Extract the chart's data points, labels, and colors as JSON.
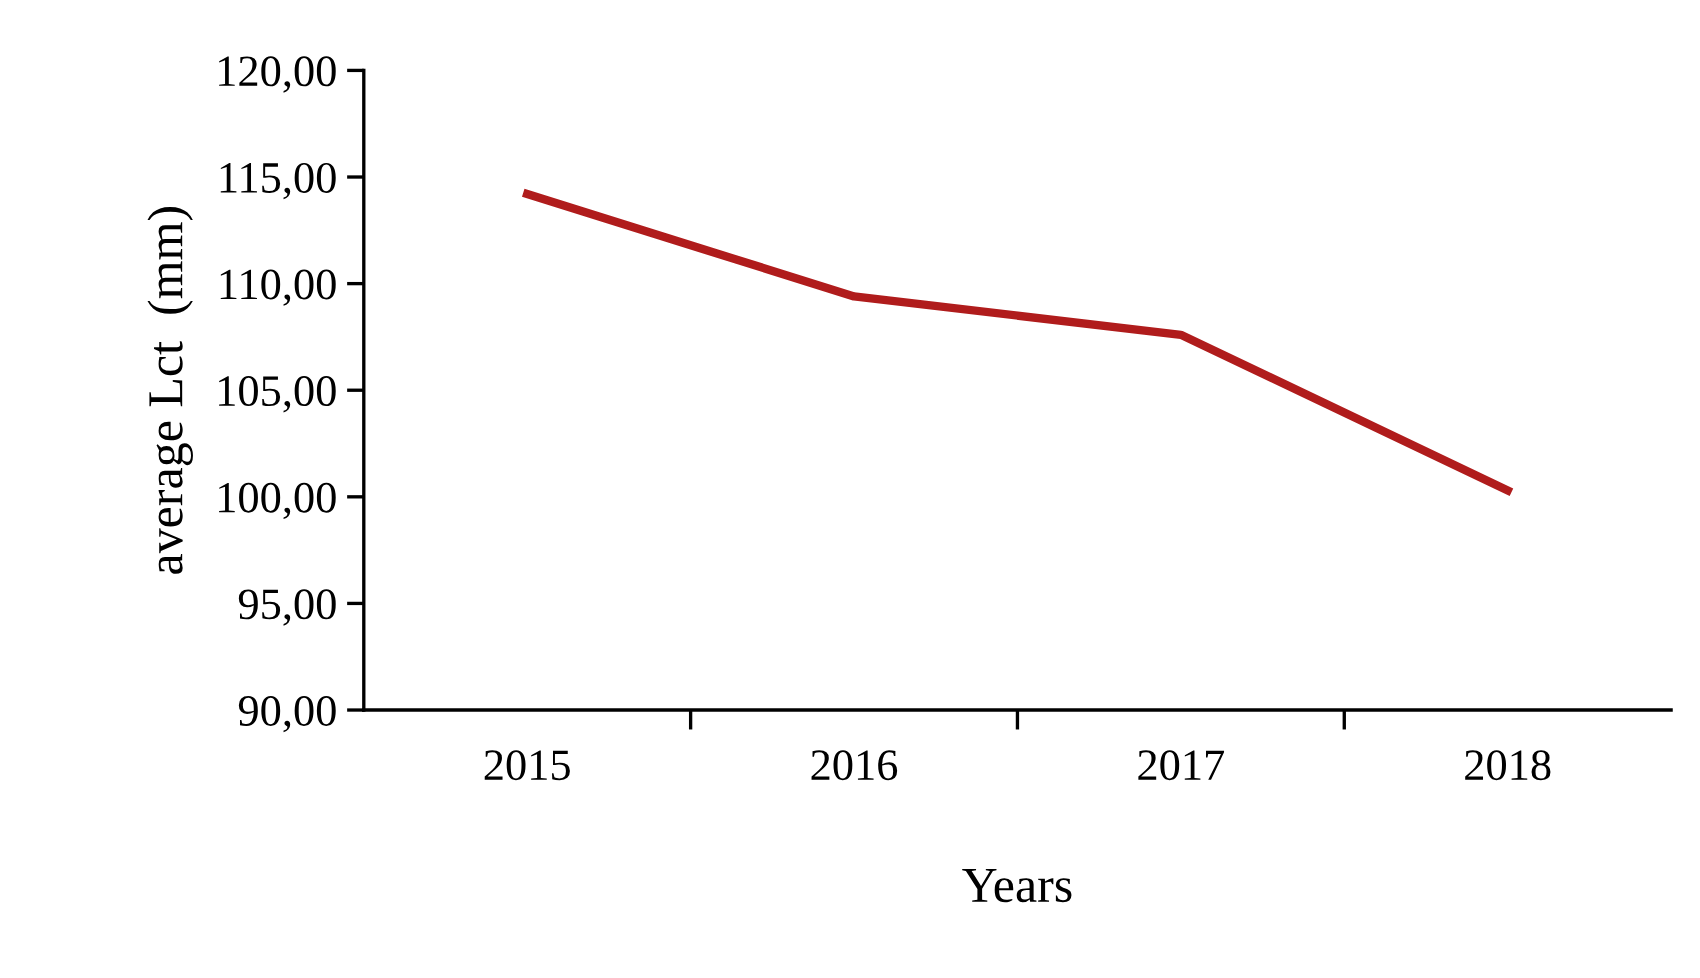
{
  "chart_data": {
    "type": "line",
    "xlabel": "Years",
    "ylabel": "average Lct  (mm)",
    "categories": [
      "2015",
      "2016",
      "2017",
      "2018"
    ],
    "series": [
      {
        "color": "#b01c1c",
        "values": [
          114.2,
          109.4,
          107.6,
          100.3
        ]
      }
    ],
    "ylim": [
      90,
      120
    ],
    "yticks": [
      {
        "value": 90,
        "label": "90,00"
      },
      {
        "value": 95,
        "label": "95,00"
      },
      {
        "value": 100,
        "label": "100,00"
      },
      {
        "value": 105,
        "label": "105,00"
      },
      {
        "value": 110,
        "label": "110,00"
      },
      {
        "value": 115,
        "label": "115,00"
      },
      {
        "value": 120,
        "label": "120,00"
      }
    ],
    "grid": false,
    "legend": false,
    "marker": "none",
    "line_style": "solid"
  }
}
